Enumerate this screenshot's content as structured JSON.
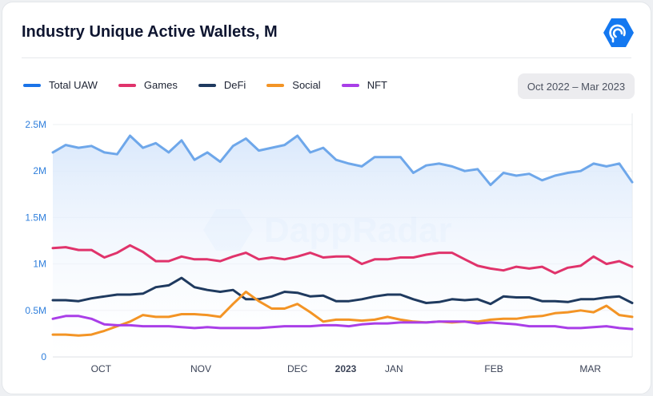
{
  "header": {
    "title": "Industry Unique Active Wallets, M",
    "logo": "dappradar-logo-icon"
  },
  "watermark": "DappRadar",
  "date_range": "Oct 2022 – Mar 2023",
  "chart_data": {
    "type": "line",
    "title": "Industry Unique Active Wallets, M",
    "legend_placement": "top-left",
    "grid": true,
    "ylim": [
      0,
      2500000
    ],
    "yticks": [
      {
        "value": 0,
        "label": "0"
      },
      {
        "value": 500000,
        "label": "0.5M"
      },
      {
        "value": 1000000,
        "label": "1M"
      },
      {
        "value": 1500000,
        "label": "1.5M"
      },
      {
        "value": 2000000,
        "label": "2M"
      },
      {
        "value": 2500000,
        "label": "2.5M"
      }
    ],
    "xlim": [
      "2022-10-02",
      "2023-03-31"
    ],
    "xticks": [
      {
        "label": "OCT",
        "date": "2022-10-17"
      },
      {
        "label": "NOV",
        "date": "2022-11-17"
      },
      {
        "label": "DEC",
        "date": "2022-12-17"
      },
      {
        "label": "2023",
        "date": "2023-01-01",
        "bold": true
      },
      {
        "label": "JAN",
        "date": "2023-01-16"
      },
      {
        "label": "FEB",
        "date": "2023-02-16"
      },
      {
        "label": "MAR",
        "date": "2023-03-18"
      }
    ],
    "x": [
      "2022-10-02",
      "2022-10-06",
      "2022-10-10",
      "2022-10-14",
      "2022-10-18",
      "2022-10-22",
      "2022-10-26",
      "2022-10-30",
      "2022-11-03",
      "2022-11-07",
      "2022-11-11",
      "2022-11-15",
      "2022-11-19",
      "2022-11-23",
      "2022-11-27",
      "2022-12-01",
      "2022-12-05",
      "2022-12-09",
      "2022-12-13",
      "2022-12-17",
      "2022-12-21",
      "2022-12-25",
      "2022-12-29",
      "2023-01-02",
      "2023-01-06",
      "2023-01-10",
      "2023-01-14",
      "2023-01-18",
      "2023-01-22",
      "2023-01-26",
      "2023-01-30",
      "2023-02-03",
      "2023-02-07",
      "2023-02-11",
      "2023-02-15",
      "2023-02-19",
      "2023-02-23",
      "2023-02-27",
      "2023-03-03",
      "2023-03-07",
      "2023-03-11",
      "2023-03-15",
      "2023-03-19",
      "2023-03-23",
      "2023-03-27",
      "2023-03-31"
    ],
    "series": [
      {
        "name": "Total UAW",
        "color": "#6ea7ea",
        "legend_color": "#1a73e8",
        "fill": true,
        "values": [
          2.2,
          2.28,
          2.25,
          2.27,
          2.2,
          2.18,
          2.38,
          2.25,
          2.3,
          2.2,
          2.33,
          2.12,
          2.2,
          2.1,
          2.27,
          2.35,
          2.22,
          2.25,
          2.28,
          2.38,
          2.2,
          2.25,
          2.12,
          2.08,
          2.05,
          2.15,
          2.15,
          2.15,
          1.98,
          2.06,
          2.08,
          2.05,
          2.0,
          2.02,
          1.85,
          1.98,
          1.95,
          1.97,
          1.9,
          1.95,
          1.98,
          2.0,
          2.08,
          2.05,
          2.08,
          1.88
        ]
      },
      {
        "name": "Games",
        "color": "#e0336b",
        "values": [
          1.17,
          1.18,
          1.15,
          1.15,
          1.07,
          1.12,
          1.2,
          1.13,
          1.03,
          1.03,
          1.08,
          1.05,
          1.05,
          1.03,
          1.08,
          1.12,
          1.05,
          1.07,
          1.05,
          1.08,
          1.12,
          1.07,
          1.08,
          1.08,
          1.0,
          1.05,
          1.05,
          1.07,
          1.07,
          1.1,
          1.12,
          1.12,
          1.05,
          0.98,
          0.95,
          0.93,
          0.97,
          0.95,
          0.97,
          0.9,
          0.96,
          0.98,
          1.08,
          1.0,
          1.03,
          0.97
        ]
      },
      {
        "name": "DeFi",
        "color": "#1f3a5f",
        "values": [
          0.61,
          0.61,
          0.6,
          0.63,
          0.65,
          0.67,
          0.67,
          0.68,
          0.75,
          0.77,
          0.85,
          0.75,
          0.72,
          0.7,
          0.72,
          0.62,
          0.62,
          0.65,
          0.7,
          0.69,
          0.65,
          0.66,
          0.6,
          0.6,
          0.62,
          0.65,
          0.67,
          0.67,
          0.62,
          0.58,
          0.59,
          0.62,
          0.61,
          0.62,
          0.57,
          0.65,
          0.64,
          0.64,
          0.6,
          0.6,
          0.59,
          0.62,
          0.62,
          0.64,
          0.65,
          0.58
        ]
      },
      {
        "name": "Social",
        "color": "#f39425",
        "values": [
          0.24,
          0.24,
          0.23,
          0.24,
          0.28,
          0.33,
          0.38,
          0.45,
          0.43,
          0.43,
          0.46,
          0.46,
          0.45,
          0.43,
          0.57,
          0.7,
          0.6,
          0.52,
          0.52,
          0.57,
          0.48,
          0.38,
          0.4,
          0.4,
          0.39,
          0.4,
          0.43,
          0.4,
          0.38,
          0.37,
          0.38,
          0.37,
          0.38,
          0.38,
          0.4,
          0.41,
          0.41,
          0.43,
          0.44,
          0.47,
          0.48,
          0.5,
          0.48,
          0.55,
          0.45,
          0.43
        ]
      },
      {
        "name": "NFT",
        "color": "#a93ee8",
        "values": [
          0.41,
          0.44,
          0.44,
          0.41,
          0.35,
          0.34,
          0.34,
          0.33,
          0.33,
          0.33,
          0.32,
          0.31,
          0.32,
          0.31,
          0.31,
          0.31,
          0.31,
          0.32,
          0.33,
          0.33,
          0.33,
          0.34,
          0.34,
          0.33,
          0.35,
          0.36,
          0.36,
          0.37,
          0.37,
          0.37,
          0.38,
          0.38,
          0.38,
          0.36,
          0.37,
          0.36,
          0.35,
          0.33,
          0.33,
          0.33,
          0.31,
          0.31,
          0.32,
          0.33,
          0.31,
          0.3
        ]
      }
    ],
    "value_unit": "M"
  }
}
